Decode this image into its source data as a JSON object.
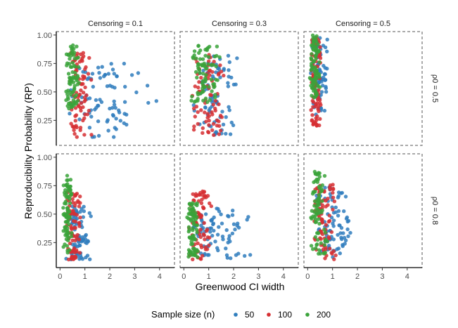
{
  "chart_data": {
    "type": "scatter",
    "xlabel": "Greenwood CI width",
    "ylabel": "Reproducibility Probability (RP)",
    "xlim": [
      -0.15,
      4.6
    ],
    "ylim": [
      0.03,
      1.03
    ],
    "x_ticks": [
      0,
      1,
      2,
      3,
      4
    ],
    "x_tick_labels": [
      "0",
      "1",
      "2",
      "3",
      "4"
    ],
    "y_ticks": [
      0.25,
      0.5,
      0.75,
      1.0
    ],
    "y_tick_labels": [
      "0.25",
      "0.50",
      "0.75",
      "1.00"
    ],
    "column_facets": [
      "Censoring = 0.1",
      "Censoring = 0.3",
      "Censoring = 0.5"
    ],
    "row_facets": [
      "ρ0 = 0.5",
      "ρ0 = 0.8"
    ],
    "legend": {
      "title": "Sample size (n)",
      "position": "bottom",
      "entries": [
        {
          "label": "50",
          "color": "#2f7dbd"
        },
        {
          "label": "100",
          "color": "#d62f32"
        },
        {
          "label": "200",
          "color": "#3aa33a"
        }
      ]
    },
    "point_count_per_series": 80,
    "panels": [
      {
        "row": 0,
        "col": 0,
        "series": [
          {
            "n": "50",
            "x_range": [
              0.2,
              4.1
            ],
            "x_mode": 1.2,
            "y_range": [
              0.1,
              0.75
            ]
          },
          {
            "n": "100",
            "x_range": [
              0.3,
              1.4
            ],
            "x_mode": 0.7,
            "y_range": [
              0.1,
              0.85
            ]
          },
          {
            "n": "200",
            "x_range": [
              0.2,
              0.8
            ],
            "x_mode": 0.45,
            "y_range": [
              0.35,
              0.92
            ]
          }
        ]
      },
      {
        "row": 0,
        "col": 1,
        "series": [
          {
            "n": "50",
            "x_range": [
              0.3,
              2.3
            ],
            "x_mode": 1.1,
            "y_range": [
              0.12,
              0.82
            ]
          },
          {
            "n": "100",
            "x_range": [
              0.3,
              1.8
            ],
            "x_mode": 0.9,
            "y_range": [
              0.12,
              0.85
            ]
          },
          {
            "n": "200",
            "x_range": [
              0.2,
              1.5
            ],
            "x_mode": 0.75,
            "y_range": [
              0.4,
              0.92
            ]
          }
        ]
      },
      {
        "row": 0,
        "col": 2,
        "series": [
          {
            "n": "50",
            "x_range": [
              0.1,
              0.9
            ],
            "x_mode": 0.4,
            "y_range": [
              0.3,
              1.0
            ]
          },
          {
            "n": "100",
            "x_range": [
              0.1,
              0.6
            ],
            "x_mode": 0.3,
            "y_range": [
              0.2,
              1.0
            ]
          },
          {
            "n": "200",
            "x_range": [
              0.05,
              0.5
            ],
            "x_mode": 0.25,
            "y_range": [
              0.45,
              1.0
            ]
          }
        ]
      },
      {
        "row": 1,
        "col": 0,
        "series": [
          {
            "n": "50",
            "x_range": [
              0.2,
              1.3
            ],
            "x_mode": 0.7,
            "y_range": [
              0.1,
              0.57
            ]
          },
          {
            "n": "100",
            "x_range": [
              0.2,
              0.9
            ],
            "x_mode": 0.5,
            "y_range": [
              0.1,
              0.7
            ]
          },
          {
            "n": "200",
            "x_range": [
              0.1,
              0.5
            ],
            "x_mode": 0.3,
            "y_range": [
              0.15,
              0.84
            ]
          }
        ]
      },
      {
        "row": 1,
        "col": 1,
        "series": [
          {
            "n": "50",
            "x_range": [
              0.2,
              2.9
            ],
            "x_mode": 1.0,
            "y_range": [
              0.1,
              0.55
            ]
          },
          {
            "n": "100",
            "x_range": [
              0.2,
              1.2
            ],
            "x_mode": 0.6,
            "y_range": [
              0.1,
              0.7
            ]
          },
          {
            "n": "200",
            "x_range": [
              0.1,
              0.6
            ],
            "x_mode": 0.35,
            "y_range": [
              0.12,
              0.6
            ]
          }
        ]
      },
      {
        "row": 1,
        "col": 2,
        "series": [
          {
            "n": "50",
            "x_range": [
              0.2,
              1.8
            ],
            "x_mode": 0.8,
            "y_range": [
              0.12,
              0.75
            ]
          },
          {
            "n": "100",
            "x_range": [
              0.2,
              1.2
            ],
            "x_mode": 0.5,
            "y_range": [
              0.1,
              0.78
            ]
          },
          {
            "n": "200",
            "x_range": [
              0.1,
              0.8
            ],
            "x_mode": 0.35,
            "y_range": [
              0.15,
              0.88
            ]
          }
        ]
      }
    ]
  }
}
